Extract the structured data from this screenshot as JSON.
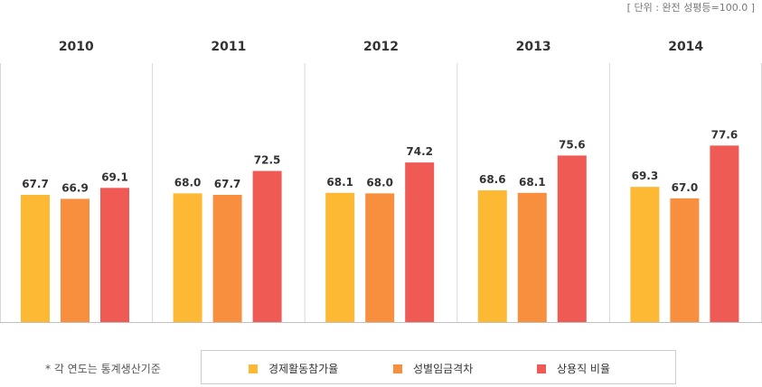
{
  "unit_text": "[ 단위 : 완전 성평등=100.0 ]",
  "note_text": "* 각 연도는 통계생산기준",
  "chart_data": {
    "type": "bar",
    "categories": [
      "2010",
      "2011",
      "2012",
      "2013",
      "2014"
    ],
    "series": [
      {
        "name": "경제활동참가율",
        "color": "#FDB933",
        "values": [
          67.7,
          68.0,
          68.1,
          68.6,
          69.3
        ],
        "labels": [
          "67.7",
          "68.0",
          "68.1",
          "68.6",
          "69.3"
        ]
      },
      {
        "name": "성별임금격차",
        "color": "#F78F3F",
        "values": [
          66.9,
          67.7,
          68.0,
          68.1,
          67.0
        ],
        "labels": [
          "66.9",
          "67.7",
          "68.0",
          "68.1",
          "67.0"
        ]
      },
      {
        "name": "상용직 비율",
        "color": "#F05A55",
        "values": [
          69.1,
          72.5,
          74.2,
          75.6,
          77.6
        ],
        "labels": [
          "69.1",
          "72.5",
          "74.2",
          "75.6",
          "77.6"
        ]
      }
    ],
    "legend_position": "bottom",
    "grid": false
  }
}
